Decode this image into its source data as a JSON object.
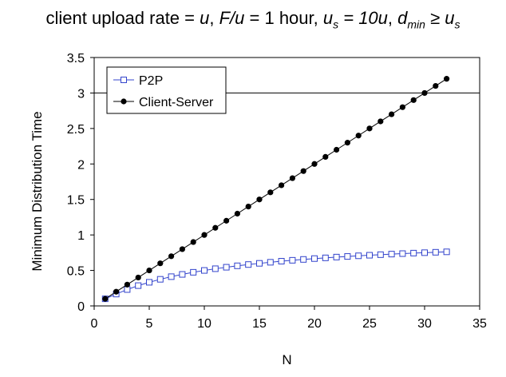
{
  "chart_data": {
    "type": "line",
    "title": {
      "prefix": "client upload rate = ",
      "u": "u",
      "part2": ",  ",
      "F_over_u": "F/u",
      "part3": " = 1 hour,  ",
      "us_base": "u",
      "us_sub": "s",
      "us_eq": " = 10u",
      "part4": ",  ",
      "d_base": "d",
      "d_sub": "min",
      "geq": " ≥ ",
      "us2_base": "u",
      "us2_sub": "s"
    },
    "xlabel": "N",
    "ylabel": "Minimum Distribution Time",
    "xlim": [
      0,
      35
    ],
    "ylim": [
      0,
      3.5
    ],
    "xticks": [
      0,
      5,
      10,
      15,
      20,
      25,
      30,
      35
    ],
    "yticks": [
      0,
      0.5,
      1,
      1.5,
      2,
      2.5,
      3,
      3.5
    ],
    "grid": "horizontal",
    "legend_position": "top-left",
    "x": [
      1,
      2,
      3,
      4,
      5,
      6,
      7,
      8,
      9,
      10,
      11,
      12,
      13,
      14,
      15,
      16,
      17,
      18,
      19,
      20,
      21,
      22,
      23,
      24,
      25,
      26,
      27,
      28,
      29,
      30,
      31,
      32
    ],
    "series": [
      {
        "name": "P2P",
        "color": "#3344cc",
        "marker": "open-square",
        "values": [
          0.1,
          0.167,
          0.231,
          0.286,
          0.333,
          0.375,
          0.412,
          0.444,
          0.474,
          0.5,
          0.524,
          0.545,
          0.565,
          0.583,
          0.6,
          0.615,
          0.63,
          0.643,
          0.655,
          0.667,
          0.677,
          0.688,
          0.697,
          0.706,
          0.714,
          0.722,
          0.73,
          0.737,
          0.744,
          0.75,
          0.756,
          0.762
        ]
      },
      {
        "name": "Client-Server",
        "color": "#000000",
        "marker": "filled-circle",
        "values": [
          0.1,
          0.2,
          0.3,
          0.4,
          0.5,
          0.6,
          0.7,
          0.8,
          0.9,
          1.0,
          1.1,
          1.2,
          1.3,
          1.4,
          1.5,
          1.6,
          1.7,
          1.8,
          1.9,
          2.0,
          2.1,
          2.2,
          2.3,
          2.4,
          2.5,
          2.6,
          2.7,
          2.8,
          2.9,
          3.0,
          3.1,
          3.2
        ]
      }
    ]
  }
}
